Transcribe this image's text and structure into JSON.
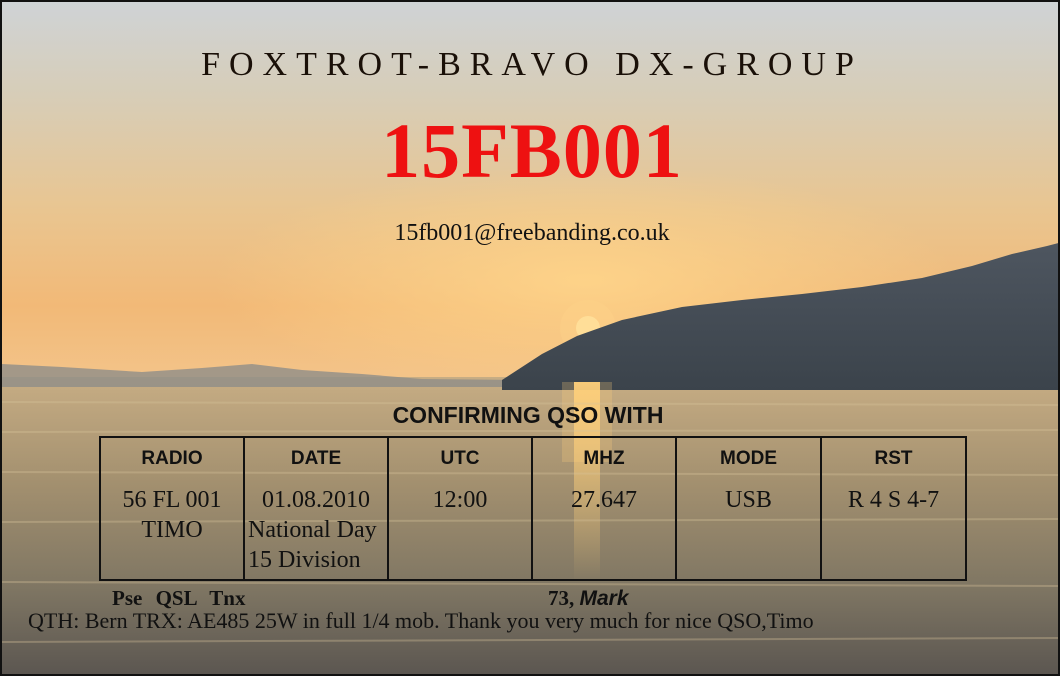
{
  "card": {
    "group_title": "FOXTROT-BRAVO DX-GROUP",
    "callsign": "15FB001",
    "email": "15fb001@freebanding.co.uk",
    "callsign_color": "#ee1111"
  },
  "confirm_heading": "CONFIRMING QSO WITH",
  "table": {
    "headers": [
      "RADIO",
      "DATE",
      "UTC",
      "MHZ",
      "MODE",
      "RST"
    ],
    "radio": [
      "56 FL 001",
      "TIMO"
    ],
    "date": [
      "01.08.2010",
      "National Day",
      "15 Division"
    ],
    "utc": "12:00",
    "mhz": "27.647",
    "mode": "USB",
    "rst": "R 4 S 4-7"
  },
  "footer": {
    "pse": "Pse  QSL  Tnx",
    "closing": "73,",
    "signature": "Mark",
    "qth": "QTH: Bern TRX: AE485 25W in full 1/4 mob.   Thank you very much for nice QSO,Timo"
  }
}
